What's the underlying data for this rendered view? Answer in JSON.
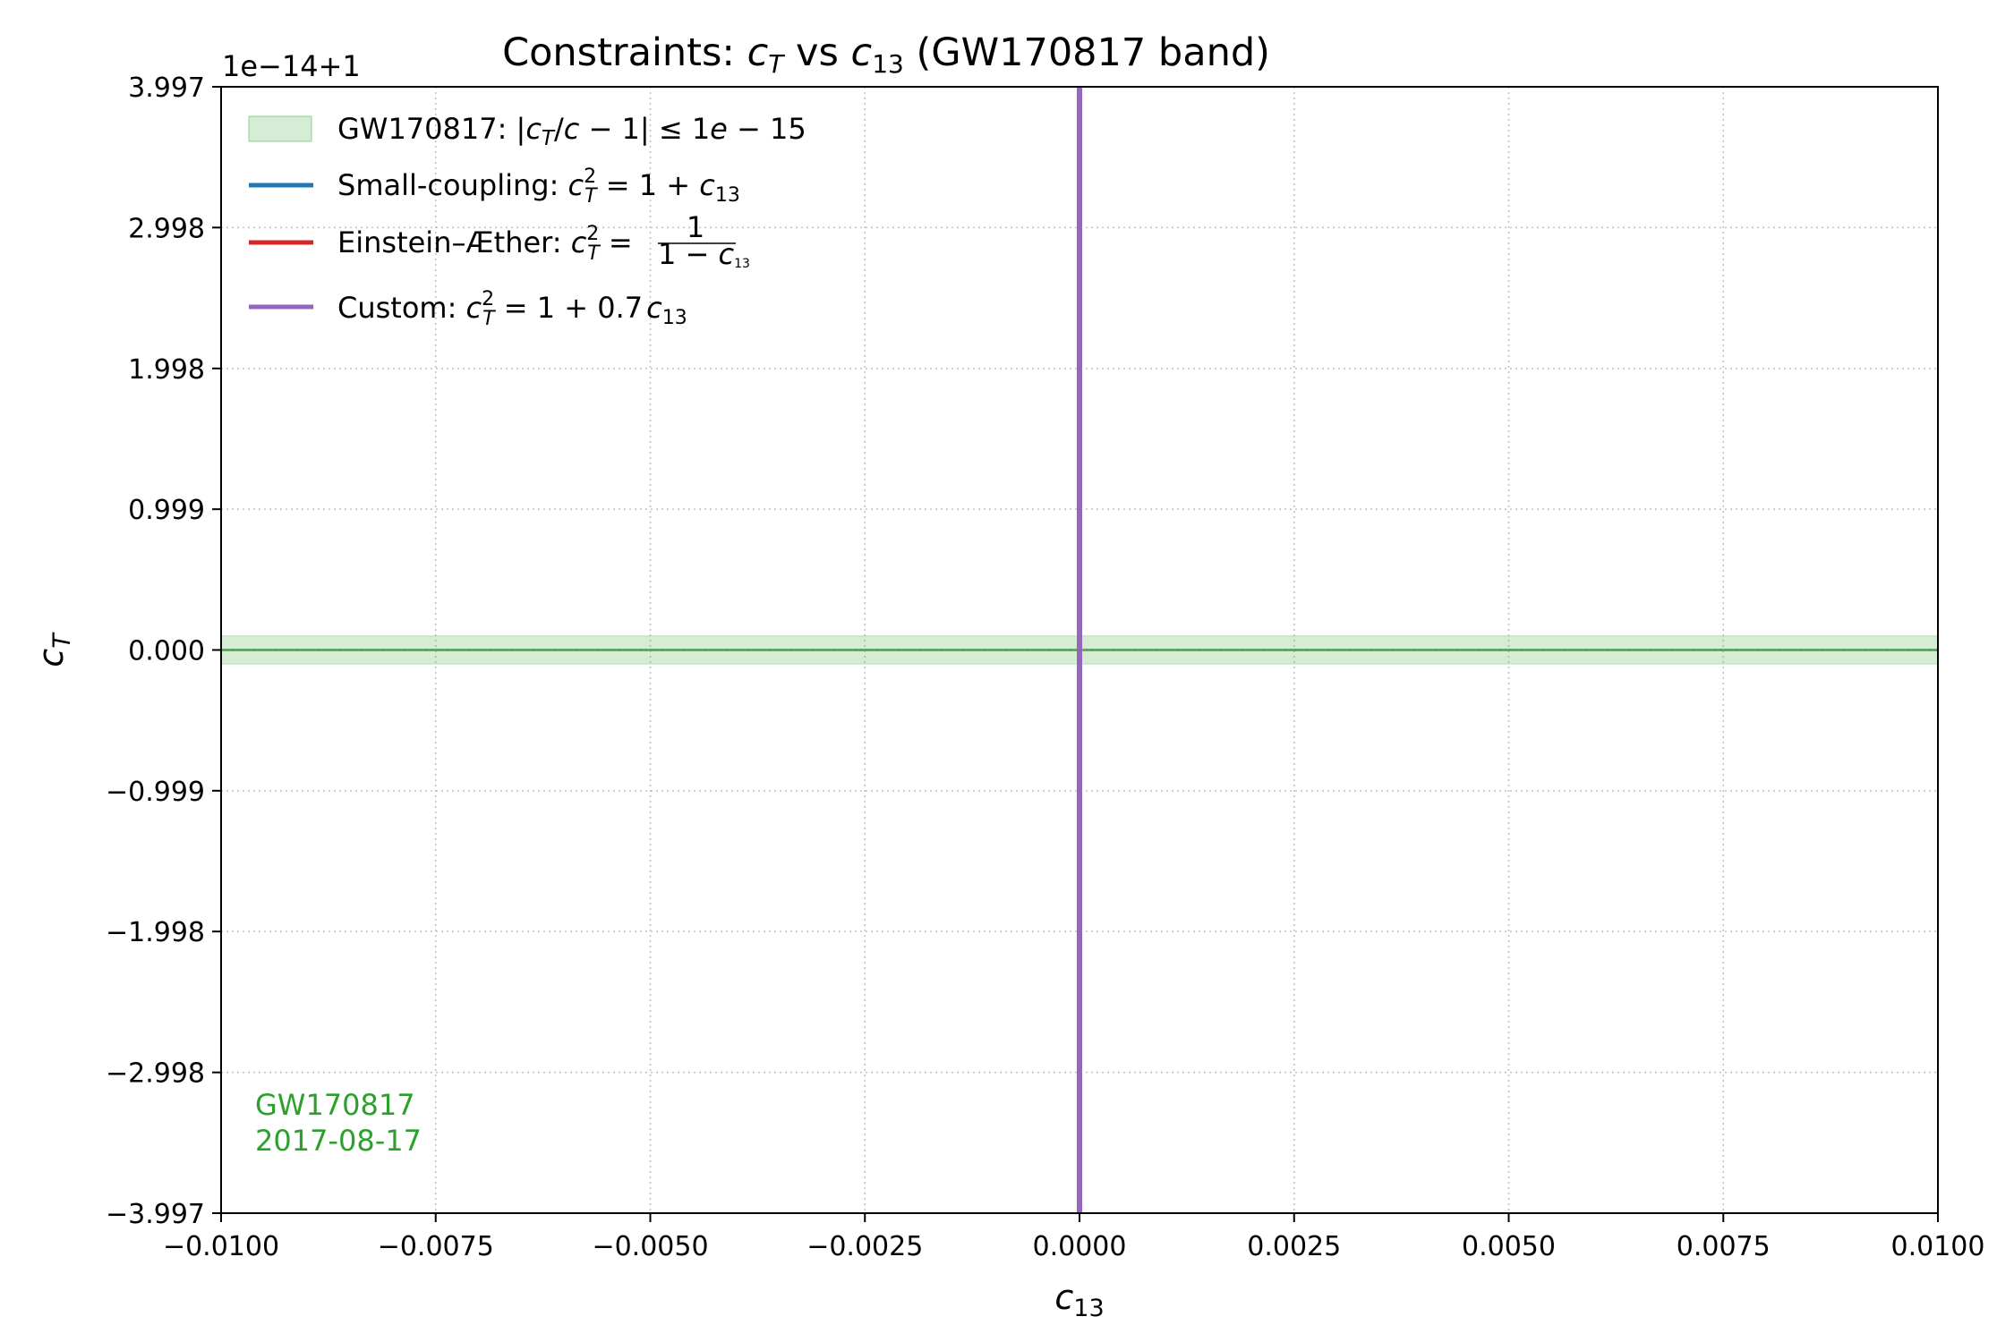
{
  "chart_data": {
    "type": "line",
    "title": "Constraints: c_T vs c_13 (GW170817 band)",
    "title_parts": {
      "pre": "Constraints: ",
      "y": "c",
      "y_sub": "T",
      "mid": " vs ",
      "x": "c",
      "x_sub": "13",
      "post": " (GW170817 band)"
    },
    "xlabel": "c_13",
    "xlabel_parts": {
      "base": "c",
      "sub": "13"
    },
    "ylabel": "c_T",
    "ylabel_parts": {
      "base": "c",
      "sub": "T"
    },
    "y_offset_label": "1e−14+1",
    "xlim": [
      -0.01,
      0.01
    ],
    "ylim": [
      -3.997,
      3.997
    ],
    "y_units_note": "y values in units of 1e-14 offset from 1",
    "x_ticks": [
      -0.01,
      -0.0075,
      -0.005,
      -0.0025,
      0.0,
      0.0025,
      0.005,
      0.0075,
      0.01
    ],
    "x_tick_labels": [
      "−0.0100",
      "−0.0075",
      "−0.0050",
      "−0.0025",
      "0.0000",
      "0.0025",
      "0.0050",
      "0.0075",
      "0.0100"
    ],
    "y_ticks": [
      3.997,
      2.998,
      1.998,
      0.999,
      0.0,
      -0.999,
      -1.998,
      -2.998,
      -3.997
    ],
    "y_tick_labels": [
      "3.997",
      "2.998",
      "1.998",
      "0.999",
      "0.000",
      "−0.999",
      "−1.998",
      "−2.998",
      "−3.997"
    ],
    "grid": true,
    "legend_placement": "top-left",
    "band": {
      "name": "GW170817: |c_T/c − 1| ≤ 1e − 15",
      "y_low": -0.1,
      "y_high": 0.1,
      "color": "#2ca02c",
      "line_y": 0.0
    },
    "series": [
      {
        "name": "Small-coupling: c_T^2 = 1 + c_13",
        "color": "#1f77b4",
        "x": [
          0.0,
          0.0
        ],
        "y": [
          -3.997,
          3.997
        ]
      },
      {
        "name": "Einstein–Æther: c_T^2 = 1/(1 − c_13)",
        "color": "#d62728",
        "x": [
          0.0,
          0.0
        ],
        "y": [
          -3.997,
          3.997
        ]
      },
      {
        "name": "Custom: c_T^2 = 1 + 0.7 c_13",
        "color": "#9467bd",
        "x": [
          0.0,
          0.0
        ],
        "y": [
          -3.997,
          3.997
        ]
      }
    ],
    "legend": [
      {
        "kind": "patch",
        "color": "#2ca02c",
        "pre": "GW170817: |",
        "it1": "c",
        "sub1": "T",
        "mid1": "/",
        "it2": "c",
        "post": " − 1| ≤ 1",
        "it3": "e",
        "end": " − 15"
      },
      {
        "kind": "line",
        "color": "#1f77b4",
        "pre": "Small-coupling: ",
        "it1": "c",
        "sup1": "2",
        "sub1": "T",
        "eq": " = 1 + ",
        "it2": "c",
        "sub2": "13"
      },
      {
        "kind": "line",
        "color": "#d62728",
        "pre": "Einstein–Æther: ",
        "it1": "c",
        "sup1": "2",
        "sub1": "T",
        "eq": " = ",
        "num": "1",
        "den": "1 − ",
        "den_it": "c",
        "den_sub": "13"
      },
      {
        "kind": "line",
        "color": "#9467bd",
        "pre": "Custom: ",
        "it1": "c",
        "sup1": "2",
        "sub1": "T",
        "eq": " = 1 + 0.7",
        "it2": "c",
        "sub2": "13"
      }
    ],
    "annotation": {
      "line1": "GW170817",
      "line2": "2017-08-17",
      "color": "#2ca02c"
    }
  }
}
